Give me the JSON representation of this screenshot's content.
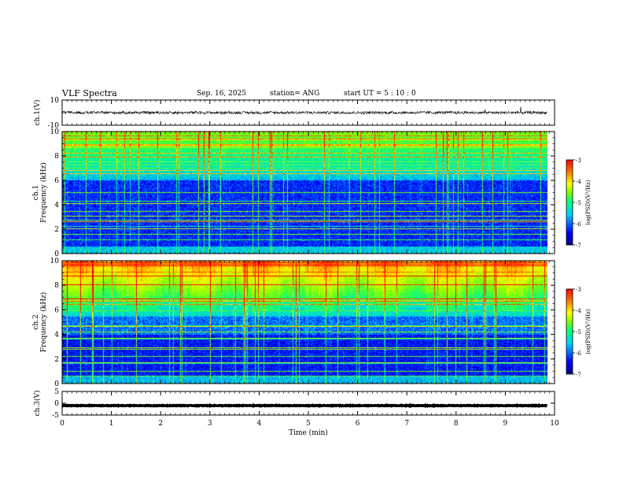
{
  "header": {
    "title": "VLF Spectra",
    "date": "Sep. 16, 2025",
    "station": "station= ANG",
    "start": "start  UT =   5  : 10 : 0"
  },
  "chart_data": [
    {
      "type": "line",
      "id": "ch1-waveform",
      "ylabel": "ch.1(V)",
      "ylim": [
        -10,
        10
      ],
      "y_ticks": [
        "10",
        "-10"
      ],
      "baseline": 0
    },
    {
      "type": "heatmap",
      "id": "ch1-spectrogram",
      "ylabel_line1": "ch.1",
      "ylabel_line2": "Frequency (kHz)",
      "ylim": [
        0,
        10
      ],
      "y_ticks": [
        "0",
        "2",
        "4",
        "6",
        "8",
        "10"
      ],
      "xlim": [
        0,
        10
      ],
      "colorbar": {
        "label": "log(PSD)(V²/Hz)",
        "range": [
          -7,
          -3
        ],
        "ticks": [
          "-3",
          "-4",
          "-5",
          "-6",
          "-7"
        ]
      }
    },
    {
      "type": "heatmap",
      "id": "ch2-spectrogram",
      "ylabel_line1": "ch.2",
      "ylabel_line2": "Frequency (kHz)",
      "ylim": [
        0,
        10
      ],
      "y_ticks": [
        "0",
        "2",
        "4",
        "6",
        "8",
        "10"
      ],
      "xlim": [
        0,
        10
      ],
      "colorbar": {
        "label": "log(PSD)(V²/Hz)",
        "range": [
          -7,
          -3
        ],
        "ticks": [
          "-3",
          "-4",
          "-5",
          "-6",
          "-7"
        ]
      }
    },
    {
      "type": "line",
      "id": "ch3-waveform",
      "ylabel": "ch.3(V)",
      "ylim": [
        -5,
        5
      ],
      "y_ticks": [
        "5",
        "0",
        "-5"
      ],
      "baseline": -1
    }
  ],
  "x_axis": {
    "label": "Time (min)",
    "range": [
      0,
      10
    ],
    "ticks": [
      "0",
      "1",
      "2",
      "3",
      "4",
      "5",
      "6",
      "7",
      "8",
      "9",
      "10"
    ],
    "data_end": 9.85
  },
  "colors": {
    "frame": "#000000",
    "colormap": [
      "#000080",
      "#0000ff",
      "#00c8ff",
      "#00ff80",
      "#80ff00",
      "#ffff00",
      "#ff8000",
      "#ff0000"
    ]
  }
}
